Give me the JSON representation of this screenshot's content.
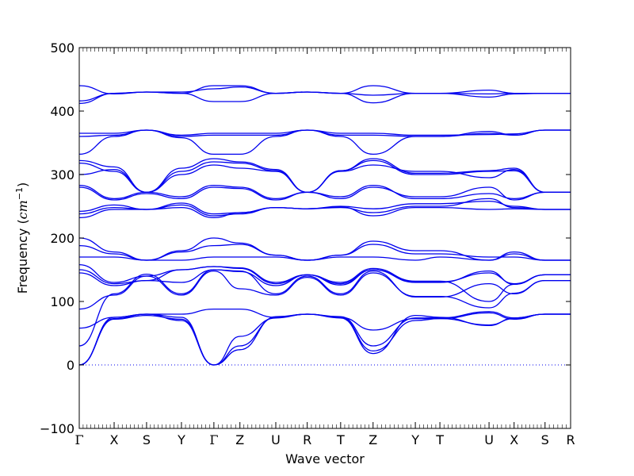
{
  "chart_data": {
    "type": "line",
    "title": "",
    "xlabel": "Wave vector",
    "ylabel_main": "Frequency (",
    "ylabel_unit": "cm",
    "ylabel_exp": "−1",
    "ylabel_close": ")",
    "ylim": [
      -100,
      500
    ],
    "yticks": [
      -100,
      0,
      100,
      200,
      300,
      400,
      500
    ],
    "ytick_labels": [
      "−100",
      "0",
      "100",
      "200",
      "300",
      "400",
      "500"
    ],
    "xlim": [
      0,
      1.0
    ],
    "q_points": [
      {
        "label": "Γ",
        "x": 0.0
      },
      {
        "label": "X",
        "x": 0.071
      },
      {
        "label": "S",
        "x": 0.137
      },
      {
        "label": "Y",
        "x": 0.208
      },
      {
        "label": "Γ",
        "x": 0.274
      },
      {
        "label": "Z",
        "x": 0.327
      },
      {
        "label": "U",
        "x": 0.4
      },
      {
        "label": "R",
        "x": 0.464
      },
      {
        "label": "T",
        "x": 0.532
      },
      {
        "label": "Z",
        "x": 0.598
      },
      {
        "label": "Y",
        "x": 0.684
      },
      {
        "label": "T",
        "x": 0.734
      },
      {
        "label": "U",
        "x": 0.834
      },
      {
        "label": "X",
        "x": 0.885
      },
      {
        "label": "S",
        "x": 0.948
      },
      {
        "label": "R",
        "x": 1.0
      }
    ],
    "zero_line": 0,
    "color": "#0000ee",
    "anchor_x": [
      0.0,
      0.071,
      0.137,
      0.208,
      0.274,
      0.327,
      0.4,
      0.464,
      0.532,
      0.598,
      0.684,
      0.734,
      0.834,
      0.885,
      0.948,
      1.0
    ],
    "bands": [
      [
        0,
        72,
        78,
        72,
        0,
        45,
        74,
        80,
        74,
        18,
        78,
        75,
        62,
        74,
        80,
        80
      ],
      [
        0,
        75,
        80,
        75,
        0,
        30,
        75,
        80,
        75,
        22,
        70,
        73,
        82,
        72,
        80,
        80
      ],
      [
        0,
        73,
        80,
        70,
        0,
        24,
        76,
        80,
        76,
        30,
        74,
        74,
        84,
        74,
        80,
        80
      ],
      [
        58,
        75,
        80,
        80,
        88,
        88,
        75,
        80,
        75,
        55,
        73,
        73,
        63,
        73,
        80,
        80
      ],
      [
        88,
        110,
        140,
        110,
        148,
        120,
        110,
        138,
        110,
        145,
        108,
        108,
        90,
        113,
        133,
        133
      ],
      [
        30,
        112,
        143,
        112,
        150,
        148,
        112,
        140,
        112,
        148,
        107,
        107,
        128,
        112,
        133,
        133
      ],
      [
        145,
        125,
        133,
        130,
        150,
        147,
        125,
        142,
        126,
        150,
        130,
        130,
        148,
        127,
        142,
        142
      ],
      [
        150,
        128,
        133,
        150,
        155,
        152,
        128,
        142,
        130,
        152,
        132,
        132,
        100,
        127,
        142,
        142
      ],
      [
        158,
        130,
        140,
        150,
        155,
        153,
        130,
        142,
        128,
        150,
        131,
        131,
        145,
        128,
        142,
        142
      ],
      [
        170,
        170,
        165,
        165,
        170,
        170,
        170,
        165,
        170,
        170,
        165,
        170,
        165,
        175,
        165,
        165
      ],
      [
        188,
        175,
        165,
        178,
        188,
        190,
        173,
        165,
        173,
        190,
        175,
        175,
        170,
        170,
        165,
        165
      ],
      [
        200,
        178,
        165,
        180,
        200,
        192,
        173,
        165,
        173,
        195,
        180,
        180,
        165,
        178,
        165,
        165
      ],
      [
        232,
        245,
        245,
        248,
        232,
        240,
        248,
        246,
        249,
        235,
        248,
        248,
        245,
        246,
        245,
        245
      ],
      [
        238,
        248,
        245,
        252,
        235,
        238,
        248,
        246,
        248,
        240,
        250,
        250,
        262,
        248,
        245,
        245
      ],
      [
        242,
        252,
        245,
        255,
        238,
        240,
        248,
        246,
        250,
        246,
        254,
        254,
        258,
        250,
        245,
        245
      ],
      [
        280,
        260,
        270,
        262,
        280,
        278,
        260,
        272,
        262,
        280,
        265,
        265,
        280,
        260,
        272,
        272
      ],
      [
        283,
        262,
        272,
        265,
        283,
        280,
        262,
        272,
        265,
        283,
        262,
        262,
        270,
        262,
        272,
        272
      ],
      [
        300,
        308,
        272,
        300,
        315,
        310,
        305,
        272,
        305,
        315,
        305,
        305,
        295,
        308,
        272,
        272
      ],
      [
        318,
        305,
        272,
        305,
        320,
        318,
        306,
        272,
        306,
        322,
        300,
        300,
        305,
        306,
        272,
        272
      ],
      [
        322,
        312,
        272,
        310,
        325,
        320,
        308,
        272,
        306,
        325,
        302,
        302,
        306,
        310,
        272,
        272
      ],
      [
        332,
        360,
        370,
        358,
        332,
        332,
        360,
        370,
        360,
        332,
        360,
        360,
        365,
        362,
        370,
        370
      ],
      [
        360,
        362,
        370,
        360,
        362,
        362,
        362,
        370,
        362,
        362,
        360,
        360,
        368,
        362,
        370,
        370
      ],
      [
        365,
        365,
        370,
        362,
        365,
        365,
        365,
        370,
        365,
        365,
        362,
        362,
        363,
        364,
        370,
        370
      ],
      [
        412,
        428,
        430,
        428,
        415,
        415,
        428,
        430,
        428,
        413,
        428,
        428,
        422,
        427,
        428,
        428
      ],
      [
        416,
        428,
        430,
        430,
        435,
        438,
        428,
        430,
        428,
        425,
        428,
        428,
        433,
        428,
        428,
        428
      ],
      [
        440,
        427,
        430,
        428,
        440,
        440,
        428,
        430,
        428,
        440,
        428,
        428,
        427,
        428,
        428,
        428
      ]
    ]
  }
}
